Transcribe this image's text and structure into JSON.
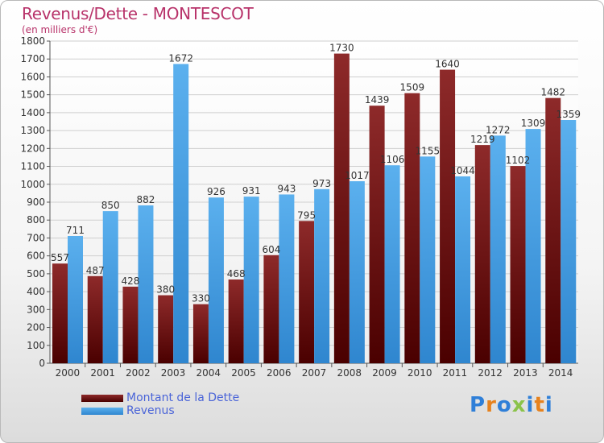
{
  "chart_data": {
    "type": "bar",
    "title": "Revenus/Dette - MONTESCOT",
    "subtitle": "(en milliers d'€)",
    "categories": [
      "2000",
      "2001",
      "2002",
      "2003",
      "2004",
      "2005",
      "2006",
      "2007",
      "2008",
      "2009",
      "2010",
      "2011",
      "2012",
      "2013",
      "2014"
    ],
    "series": [
      {
        "name": "Montant de la Dette",
        "values": [
          557,
          487,
          428,
          380,
          330,
          468,
          604,
          795,
          1730,
          1439,
          1509,
          1640,
          1219,
          1102,
          1482
        ],
        "color": "#7a1414"
      },
      {
        "name": "Revenus",
        "values": [
          711,
          850,
          882,
          1672,
          926,
          931,
          943,
          973,
          1017,
          1106,
          1155,
          1044,
          1272,
          1309,
          1359
        ],
        "color": "#4aa3e6"
      }
    ],
    "ylim": [
      0,
      1800
    ],
    "ytick_step": 100,
    "grid": true,
    "legend": "bottom-left"
  },
  "brand": {
    "logo_text": "Proxiti",
    "letter_colors": [
      "#2f7fd8",
      "#e6821e",
      "#2f7fd8",
      "#8bc34a",
      "#2f7fd8",
      "#e6821e",
      "#2f7fd8"
    ]
  }
}
